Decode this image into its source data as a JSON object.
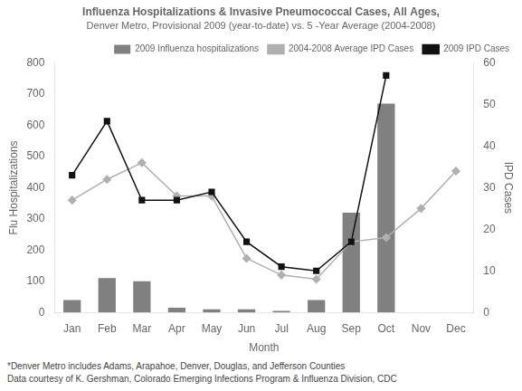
{
  "chart_data": {
    "type": "bar",
    "title": "Influenza Hospitalizations & Invasive Pneumococcal Cases, All Ages,",
    "subtitle": "Denver Metro, Provisional 2009 (year-to-date) vs. 5 -Year Average (2004-2008)",
    "annotations": [
      "*Denver Metro includes Adams, Arapahoe, Denver, Douglas, and Jefferson Counties",
      "Data courtesy of K. Gershman, Colorado Emerging Infections Program & Influenza Division, CDC"
    ],
    "xlabel": "Month",
    "ylabel": "Flu Hospitalizations",
    "y2label": "IPD Cases",
    "categories": [
      "Jan",
      "Feb",
      "Mar",
      "Apr",
      "May",
      "Jun",
      "Jul",
      "Aug",
      "Sep",
      "Oct",
      "Nov",
      "Dec"
    ],
    "series": [
      {
        "name": "2009 Influenza hospitalizations",
        "type": "bar",
        "color": "#808080",
        "values": [
          40,
          110,
          100,
          15,
          10,
          10,
          5,
          40,
          320,
          670,
          0,
          0
        ]
      },
      {
        "name": "2004-2008 Average IPD Cases",
        "type": "line",
        "axis": "y2",
        "color": "#b0b0b0",
        "marker": "diamond",
        "values": [
          27,
          32,
          36,
          28,
          28,
          13,
          9,
          8,
          17,
          18,
          25,
          34
        ]
      },
      {
        "name": "2009 IPD Cases",
        "type": "line",
        "axis": "y2",
        "color": "#111111",
        "marker": "square",
        "values": [
          33,
          46,
          27,
          27,
          29,
          17,
          11,
          10,
          17,
          57,
          null,
          null
        ]
      }
    ],
    "ylim": [
      0,
      800
    ],
    "yticks": [
      0,
      100,
      200,
      300,
      400,
      500,
      600,
      700,
      800
    ],
    "y2lim": [
      0,
      60
    ],
    "y2ticks": [
      0,
      10,
      20,
      30,
      40,
      50,
      60
    ],
    "grid": false,
    "legend": "upper right"
  }
}
